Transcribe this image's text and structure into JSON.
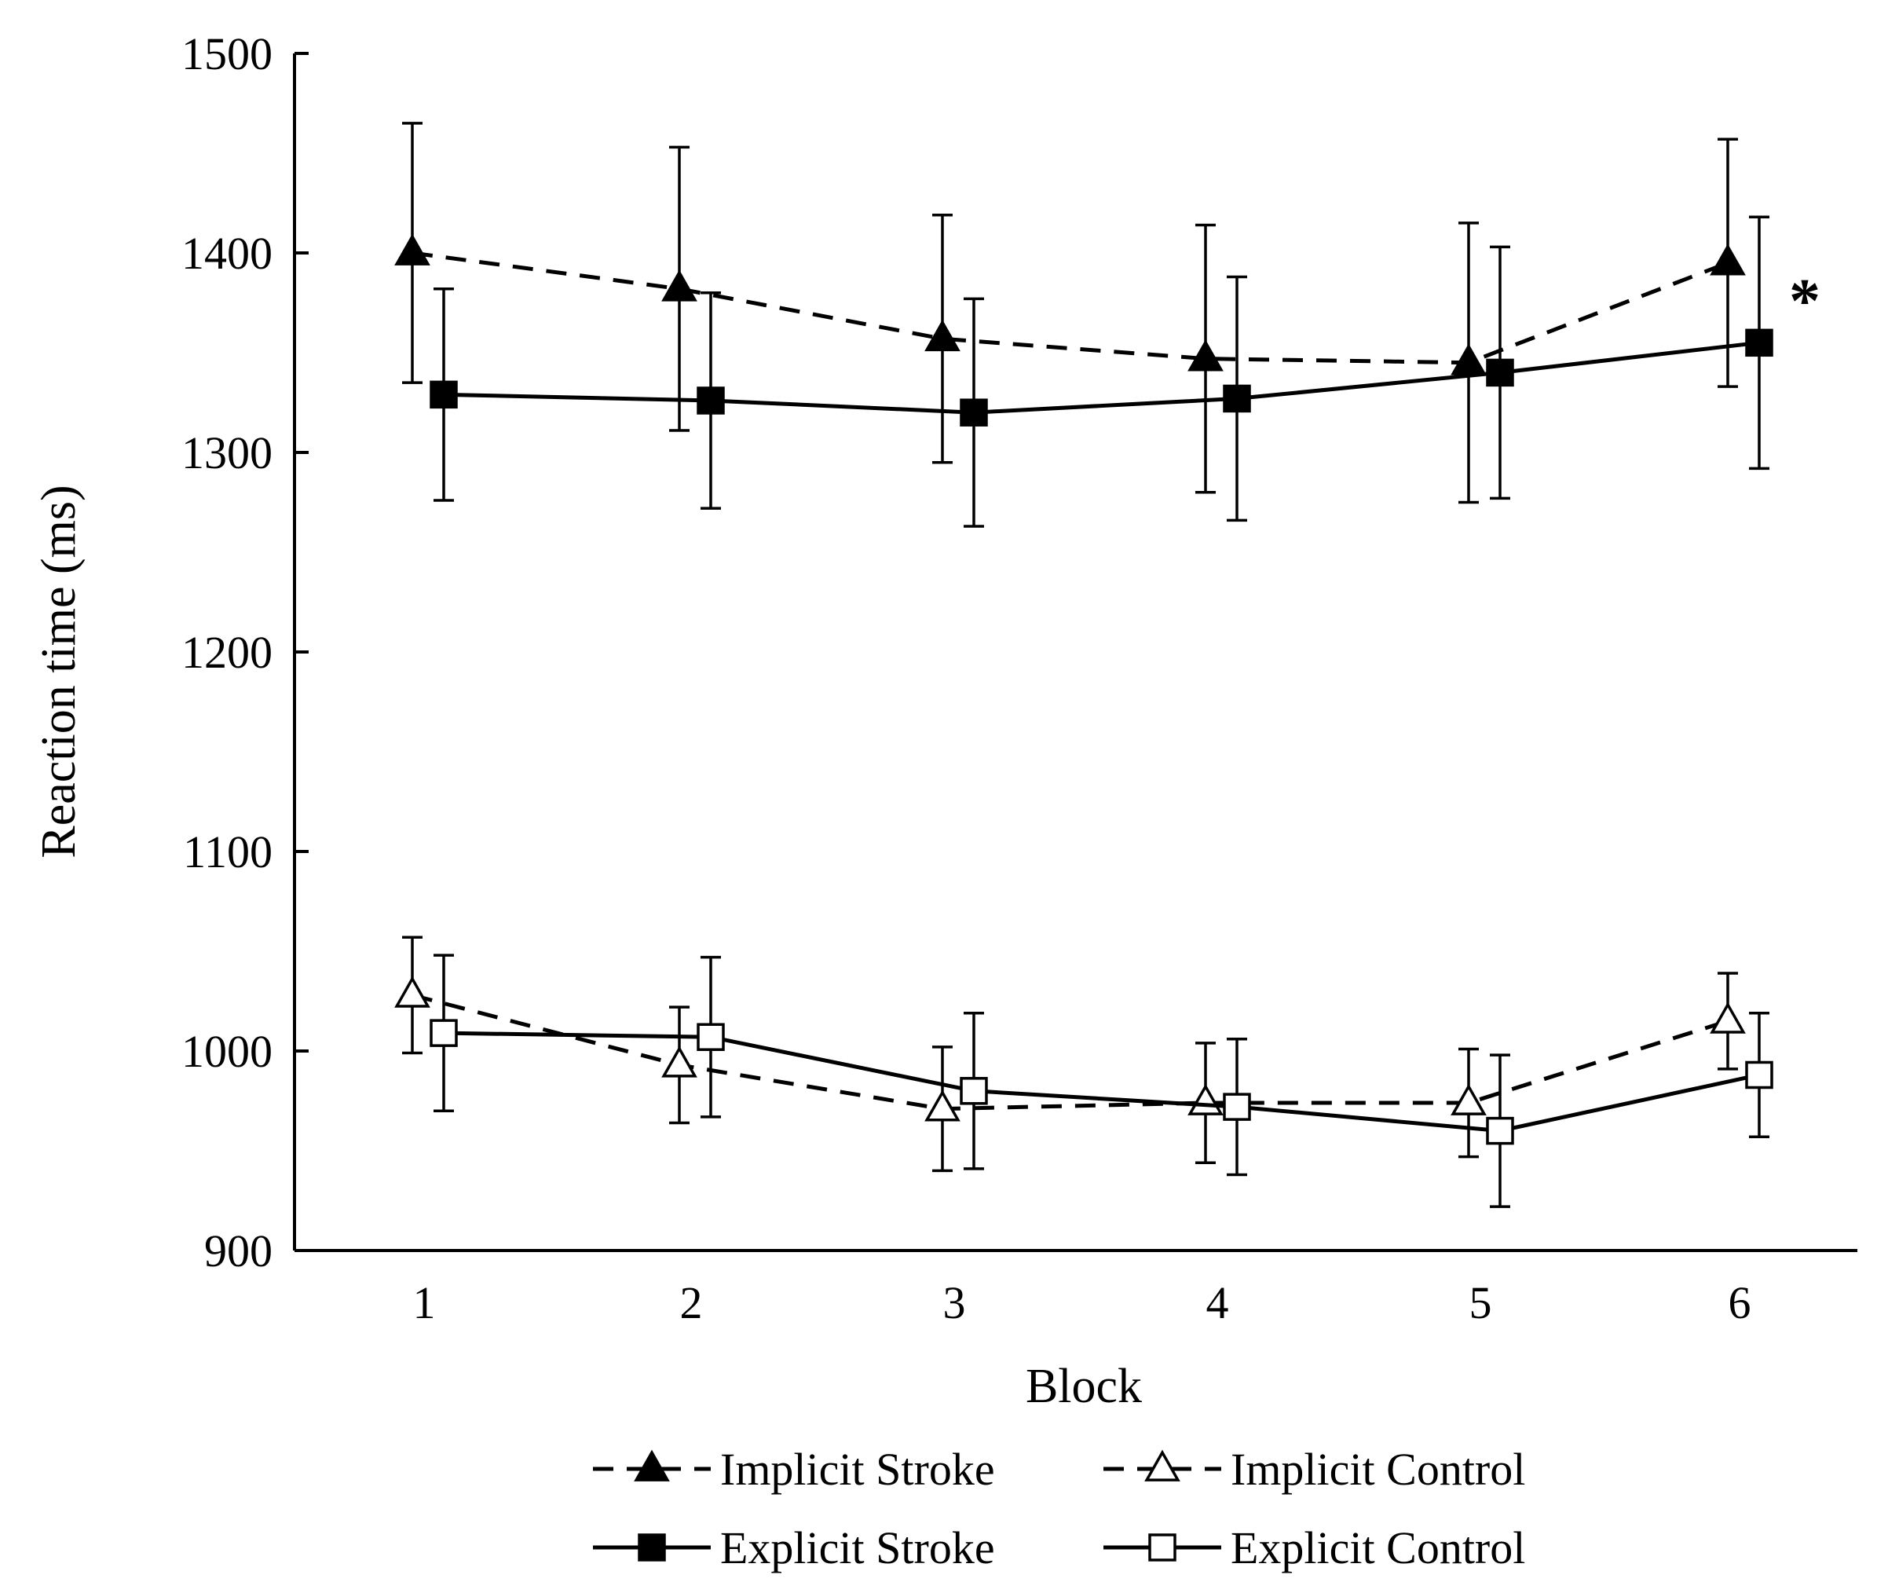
{
  "chart_data": {
    "type": "line",
    "title": "",
    "xlabel": "Block",
    "ylabel": "Reaction time (ms)",
    "categories": [
      "1",
      "2",
      "3",
      "4",
      "5",
      "6"
    ],
    "ylim": [
      900,
      1500
    ],
    "yticks": [
      "900",
      "1000",
      "1100",
      "1200",
      "1300",
      "1400",
      "1500"
    ],
    "grid": false,
    "legend_position": "bottom",
    "annotation": "*",
    "annotation_block": 6,
    "series": [
      {
        "name": "Implicit Stroke",
        "line": "dashed",
        "marker": "triangle",
        "filled": true,
        "values": [
          1400,
          1382,
          1357,
          1347,
          1345,
          1395
        ],
        "error": [
          65,
          71,
          62,
          67,
          70,
          62
        ]
      },
      {
        "name": "Explicit Stroke",
        "line": "solid",
        "marker": "square",
        "filled": true,
        "values": [
          1329,
          1326,
          1320,
          1327,
          1340,
          1355
        ],
        "error": [
          53,
          54,
          57,
          61,
          63,
          63
        ]
      },
      {
        "name": "Implicit Control",
        "line": "dashed",
        "marker": "triangle",
        "filled": false,
        "values": [
          1028,
          993,
          971,
          974,
          974,
          1015
        ],
        "error": [
          29,
          29,
          31,
          30,
          27,
          24
        ]
      },
      {
        "name": "Explicit Control",
        "line": "solid",
        "marker": "square",
        "filled": false,
        "values": [
          1009,
          1007,
          980,
          972,
          960,
          988
        ],
        "error": [
          39,
          40,
          39,
          34,
          38,
          31
        ]
      }
    ]
  }
}
